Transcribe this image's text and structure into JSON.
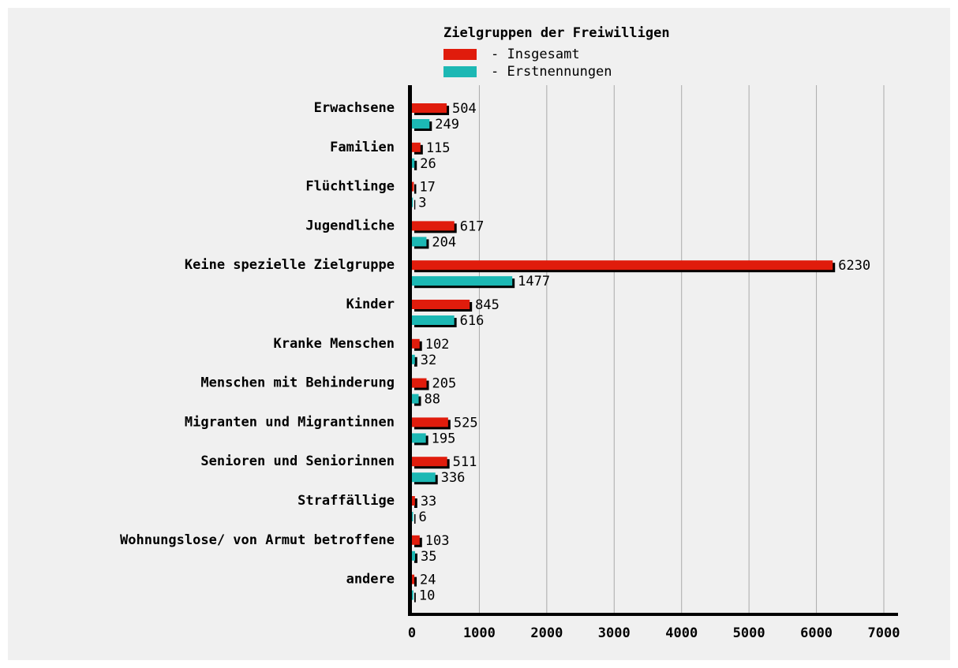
{
  "chart_data": {
    "type": "barh",
    "title": "Zielgruppen der Freiwilligen",
    "categories": [
      "Erwachsene",
      "Familien",
      "Flüchtlinge",
      "Jugendliche",
      "Keine spezielle Zielgruppe",
      "Kinder",
      "Kranke Menschen",
      "Menschen mit Behinderung",
      "Migranten und Migrantinnen",
      "Senioren und Seniorinnen",
      "Straffällige",
      "Wohnungslose/ von Armut betroffene",
      "andere"
    ],
    "series": [
      {
        "name": "- Insgesamt",
        "color": "#e01c0c",
        "values": [
          504,
          115,
          17,
          617,
          6230,
          845,
          102,
          205,
          525,
          511,
          33,
          103,
          24
        ]
      },
      {
        "name": "- Erstnennungen",
        "color": "#1cb8b4",
        "values": [
          249,
          26,
          3,
          204,
          1477,
          616,
          32,
          88,
          195,
          336,
          6,
          35,
          10
        ]
      }
    ],
    "xlim": [
      0,
      7000
    ],
    "xticks": [
      0,
      1000,
      2000,
      3000,
      4000,
      5000,
      6000,
      7000
    ],
    "grid": true
  }
}
